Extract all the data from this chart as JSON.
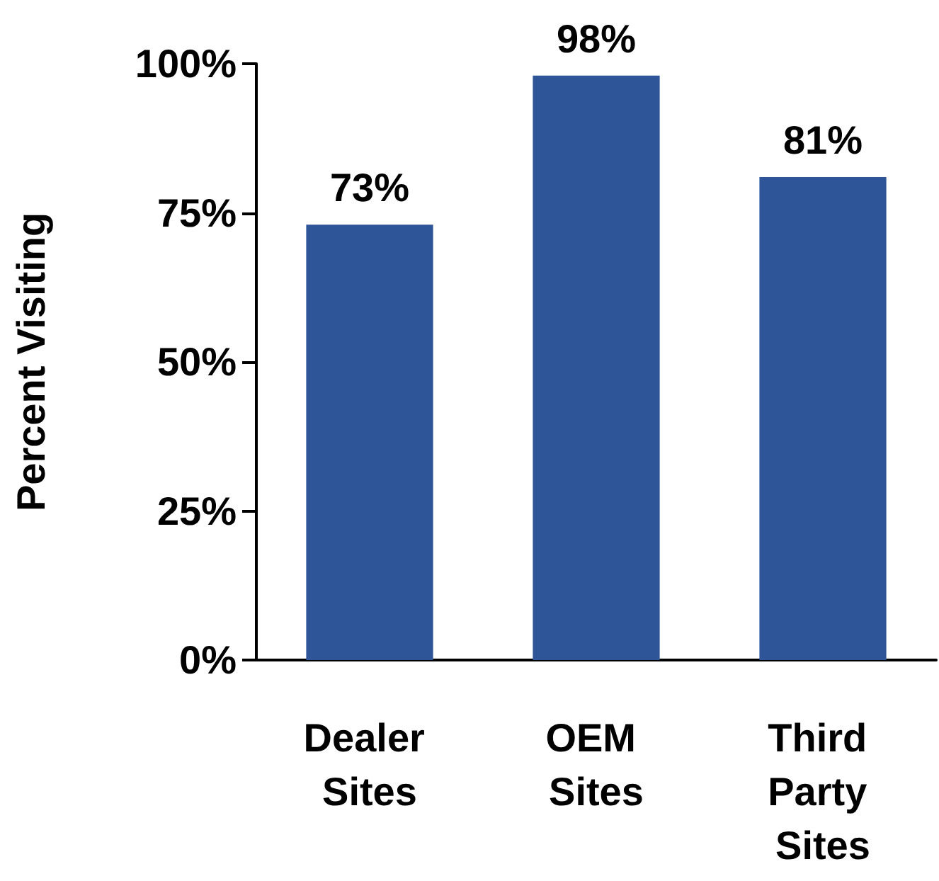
{
  "chart_data": {
    "type": "bar",
    "ylabel": "Percent Visiting",
    "categories": [
      "Dealer Sites",
      "OEM Sites",
      "Third Party Sites"
    ],
    "values": [
      73,
      98,
      81
    ],
    "color": "#2e5597",
    "value_labels": [
      "73%",
      "98%",
      "81%"
    ],
    "ylim": [
      0,
      100
    ],
    "yticks": [
      {
        "value": 0,
        "label": "0%"
      },
      {
        "value": 25,
        "label": "25%"
      },
      {
        "value": 50,
        "label": "50%"
      },
      {
        "value": 75,
        "label": "75%"
      },
      {
        "value": 100,
        "label": "100%"
      }
    ],
    "grid": false
  }
}
